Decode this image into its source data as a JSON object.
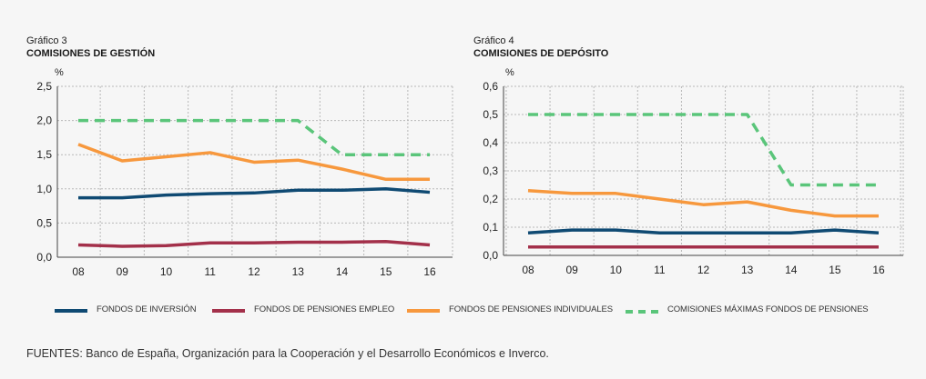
{
  "chart_data": [
    {
      "id": "chart-3",
      "type": "line",
      "figure_number": "Gráfico 3",
      "title": "COMISIONES DE GESTIÓN",
      "ylabel": "%",
      "categories": [
        "08",
        "09",
        "10",
        "11",
        "12",
        "13",
        "14",
        "15",
        "16"
      ],
      "ylim": [
        0,
        2.5
      ],
      "yticks": [
        "0,0",
        "0,5",
        "1,0",
        "1,5",
        "2,0",
        "2,5"
      ],
      "grid": true,
      "series": [
        {
          "key": "inversion",
          "name": "FONDOS DE INVERSIÓN",
          "values": [
            0.87,
            0.87,
            0.91,
            0.93,
            0.94,
            0.98,
            0.98,
            1.0,
            0.95
          ]
        },
        {
          "key": "empleo",
          "name": "FONDOS DE PENSIONES EMPLEO",
          "values": [
            0.18,
            0.16,
            0.17,
            0.21,
            0.21,
            0.22,
            0.22,
            0.23,
            0.18
          ]
        },
        {
          "key": "individuales",
          "name": "FONDOS DE PENSIONES INDIVIDUALES",
          "values": [
            1.65,
            1.41,
            1.47,
            1.53,
            1.39,
            1.42,
            1.29,
            1.14,
            1.14
          ]
        },
        {
          "key": "maximas",
          "name": "COMISIONES MÁXIMAS FONDOS DE PENSIONES",
          "values": [
            2.0,
            2.0,
            2.0,
            2.0,
            2.0,
            2.0,
            1.5,
            1.5,
            1.5
          ]
        }
      ]
    },
    {
      "id": "chart-4",
      "type": "line",
      "figure_number": "Gráfico 4",
      "title": "COMISIONES DE DEPÓSITO",
      "ylabel": "%",
      "categories": [
        "08",
        "09",
        "10",
        "11",
        "12",
        "13",
        "14",
        "15",
        "16"
      ],
      "ylim": [
        0,
        0.6
      ],
      "yticks": [
        "0,0",
        "0,1",
        "0,2",
        "0,3",
        "0,4",
        "0,5",
        "0,6"
      ],
      "grid": true,
      "series": [
        {
          "key": "inversion",
          "name": "FONDOS DE INVERSIÓN",
          "values": [
            0.08,
            0.09,
            0.09,
            0.08,
            0.08,
            0.08,
            0.08,
            0.09,
            0.08
          ]
        },
        {
          "key": "empleo",
          "name": "FONDOS DE PENSIONES EMPLEO",
          "values": [
            0.03,
            0.03,
            0.03,
            0.03,
            0.03,
            0.03,
            0.03,
            0.03,
            0.03
          ]
        },
        {
          "key": "individuales",
          "name": "FONDOS DE PENSIONES INDIVIDUALES",
          "values": [
            0.23,
            0.22,
            0.22,
            0.2,
            0.18,
            0.19,
            0.16,
            0.14,
            0.14
          ]
        },
        {
          "key": "maximas",
          "name": "COMISIONES MÁXIMAS FONDOS DE PENSIONES",
          "values": [
            0.5,
            0.5,
            0.5,
            0.5,
            0.5,
            0.5,
            0.25,
            0.25,
            0.25
          ]
        }
      ]
    }
  ],
  "legend": [
    {
      "key": "inversion",
      "label": "FONDOS DE INVERSIÓN"
    },
    {
      "key": "empleo",
      "label": "FONDOS DE PENSIONES EMPLEO"
    },
    {
      "key": "individuales",
      "label": "FONDOS DE PENSIONES INDIVIDUALES"
    },
    {
      "key": "maximas",
      "label": "COMISIONES MÁXIMAS FONDOS DE PENSIONES"
    }
  ],
  "colors": {
    "inversion": "#0f4a73",
    "empleo": "#a3304a",
    "individuales": "#f7983d",
    "maximas": "#5ac57a",
    "grid": "#b8b8b8"
  },
  "sources": "FUENTES: Banco de España, Organización para la Cooperación y el Desarrollo Económicos e Inverco."
}
